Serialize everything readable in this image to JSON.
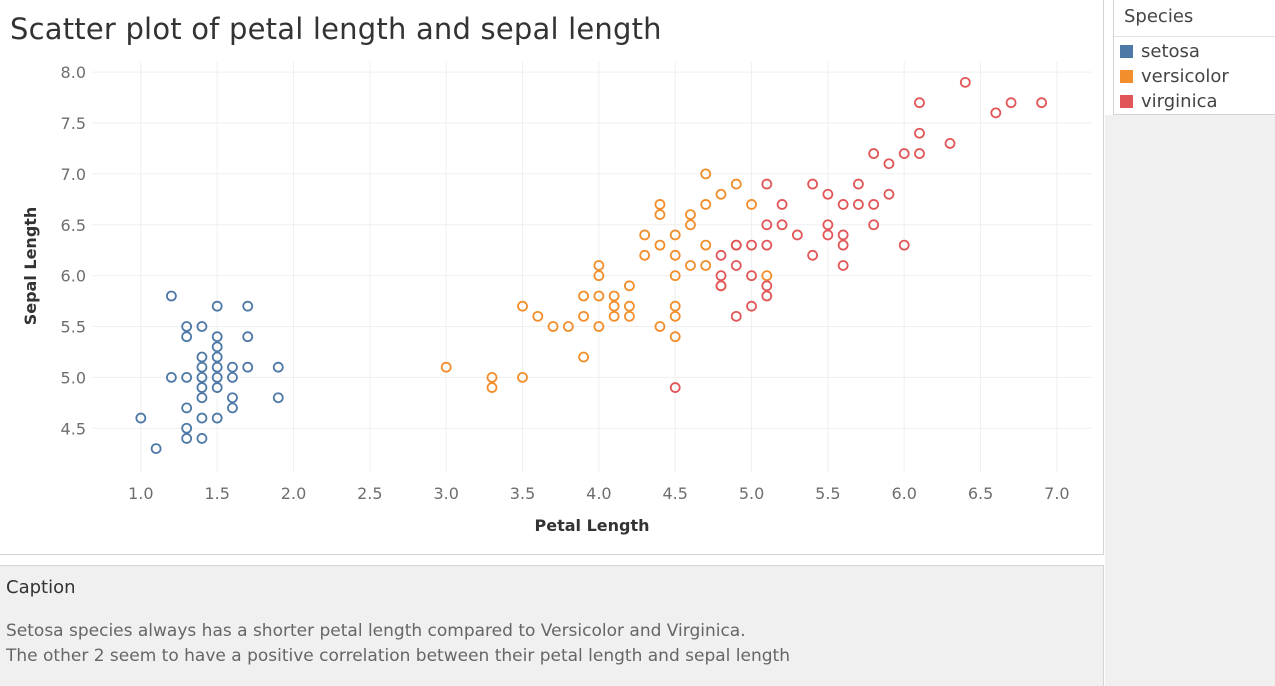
{
  "sheet": {
    "title": "Scatter plot of petal length and sepal length"
  },
  "legend": {
    "title": "Species",
    "items": [
      {
        "label": "setosa",
        "color": "#4e79a7"
      },
      {
        "label": "versicolor",
        "color": "#f28e2b"
      },
      {
        "label": "virginica",
        "color": "#e15759"
      }
    ]
  },
  "caption": {
    "title": "Caption",
    "lines": [
      "Setosa species always has a shorter petal length compared to Versicolor and Virginica.",
      "The other 2 seem to have a positive correlation between their petal length and sepal length"
    ]
  },
  "chart_data": {
    "type": "scatter",
    "title": "Scatter plot of petal length and sepal length",
    "xlabel": "Petal Length",
    "ylabel": "Sepal Length",
    "xlim": [
      0.68,
      7.23
    ],
    "ylim": [
      4.07,
      8.1
    ],
    "xticks": [
      "1.0",
      "1.5",
      "2.0",
      "2.5",
      "3.0",
      "3.5",
      "4.0",
      "4.5",
      "5.0",
      "5.5",
      "6.0",
      "6.5",
      "7.0"
    ],
    "yticks": [
      "4.5",
      "5.0",
      "5.5",
      "6.0",
      "6.5",
      "7.0",
      "7.5",
      "8.0"
    ],
    "grid": true,
    "marker": "hollow-circle",
    "series": [
      {
        "name": "setosa",
        "color": "#4e79a7",
        "points": [
          [
            1.0,
            4.6
          ],
          [
            1.1,
            4.3
          ],
          [
            1.2,
            5.8
          ],
          [
            1.2,
            5.0
          ],
          [
            1.3,
            5.5
          ],
          [
            1.3,
            5.4
          ],
          [
            1.3,
            5.0
          ],
          [
            1.3,
            4.7
          ],
          [
            1.3,
            4.5
          ],
          [
            1.3,
            4.4
          ],
          [
            1.4,
            5.5
          ],
          [
            1.4,
            5.2
          ],
          [
            1.4,
            5.1
          ],
          [
            1.4,
            5.0
          ],
          [
            1.4,
            4.9
          ],
          [
            1.4,
            4.8
          ],
          [
            1.4,
            4.6
          ],
          [
            1.4,
            4.4
          ],
          [
            1.5,
            5.7
          ],
          [
            1.5,
            5.4
          ],
          [
            1.5,
            5.3
          ],
          [
            1.5,
            5.2
          ],
          [
            1.5,
            5.1
          ],
          [
            1.5,
            5.0
          ],
          [
            1.5,
            4.9
          ],
          [
            1.5,
            4.6
          ],
          [
            1.6,
            5.1
          ],
          [
            1.6,
            5.0
          ],
          [
            1.6,
            4.8
          ],
          [
            1.6,
            4.7
          ],
          [
            1.7,
            5.7
          ],
          [
            1.7,
            5.4
          ],
          [
            1.7,
            5.1
          ],
          [
            1.9,
            5.1
          ],
          [
            1.9,
            4.8
          ]
        ]
      },
      {
        "name": "versicolor",
        "color": "#f28e2b",
        "points": [
          [
            3.0,
            5.1
          ],
          [
            3.3,
            5.0
          ],
          [
            3.3,
            4.9
          ],
          [
            3.5,
            5.7
          ],
          [
            3.5,
            5.0
          ],
          [
            3.6,
            5.6
          ],
          [
            3.7,
            5.5
          ],
          [
            3.8,
            5.5
          ],
          [
            3.9,
            5.8
          ],
          [
            3.9,
            5.6
          ],
          [
            3.9,
            5.2
          ],
          [
            4.0,
            6.1
          ],
          [
            4.0,
            6.0
          ],
          [
            4.0,
            5.8
          ],
          [
            4.0,
            5.5
          ],
          [
            4.1,
            5.8
          ],
          [
            4.1,
            5.7
          ],
          [
            4.1,
            5.6
          ],
          [
            4.2,
            5.9
          ],
          [
            4.2,
            5.7
          ],
          [
            4.2,
            5.6
          ],
          [
            4.3,
            6.4
          ],
          [
            4.3,
            6.2
          ],
          [
            4.4,
            6.7
          ],
          [
            4.4,
            6.6
          ],
          [
            4.4,
            6.3
          ],
          [
            4.4,
            5.5
          ],
          [
            4.5,
            6.4
          ],
          [
            4.5,
            6.2
          ],
          [
            4.5,
            6.0
          ],
          [
            4.5,
            5.7
          ],
          [
            4.5,
            5.6
          ],
          [
            4.5,
            5.4
          ],
          [
            4.6,
            6.6
          ],
          [
            4.6,
            6.5
          ],
          [
            4.6,
            6.1
          ],
          [
            4.7,
            7.0
          ],
          [
            4.7,
            6.7
          ],
          [
            4.7,
            6.3
          ],
          [
            4.7,
            6.1
          ],
          [
            4.8,
            6.8
          ],
          [
            4.8,
            5.9
          ],
          [
            4.9,
            6.9
          ],
          [
            4.9,
            6.3
          ],
          [
            5.0,
            6.7
          ],
          [
            5.1,
            6.0
          ]
        ]
      },
      {
        "name": "virginica",
        "color": "#e15759",
        "points": [
          [
            4.5,
            4.9
          ],
          [
            4.8,
            6.2
          ],
          [
            4.8,
            6.0
          ],
          [
            4.8,
            5.9
          ],
          [
            4.9,
            6.3
          ],
          [
            4.9,
            6.1
          ],
          [
            4.9,
            5.6
          ],
          [
            5.0,
            6.3
          ],
          [
            5.0,
            6.0
          ],
          [
            5.0,
            5.7
          ],
          [
            5.1,
            6.9
          ],
          [
            5.1,
            6.5
          ],
          [
            5.1,
            6.3
          ],
          [
            5.1,
            5.9
          ],
          [
            5.1,
            5.8
          ],
          [
            5.2,
            6.7
          ],
          [
            5.2,
            6.5
          ],
          [
            5.3,
            6.4
          ],
          [
            5.4,
            6.9
          ],
          [
            5.4,
            6.2
          ],
          [
            5.5,
            6.8
          ],
          [
            5.5,
            6.5
          ],
          [
            5.5,
            6.4
          ],
          [
            5.6,
            6.7
          ],
          [
            5.6,
            6.4
          ],
          [
            5.6,
            6.3
          ],
          [
            5.6,
            6.1
          ],
          [
            5.7,
            6.9
          ],
          [
            5.7,
            6.7
          ],
          [
            5.8,
            7.2
          ],
          [
            5.8,
            6.7
          ],
          [
            5.8,
            6.5
          ],
          [
            5.9,
            7.1
          ],
          [
            5.9,
            6.8
          ],
          [
            6.0,
            7.2
          ],
          [
            6.0,
            6.3
          ],
          [
            6.1,
            7.7
          ],
          [
            6.1,
            7.4
          ],
          [
            6.1,
            7.2
          ],
          [
            6.3,
            7.3
          ],
          [
            6.4,
            7.9
          ],
          [
            6.6,
            7.6
          ],
          [
            6.7,
            7.7
          ],
          [
            6.9,
            7.7
          ]
        ]
      }
    ]
  }
}
